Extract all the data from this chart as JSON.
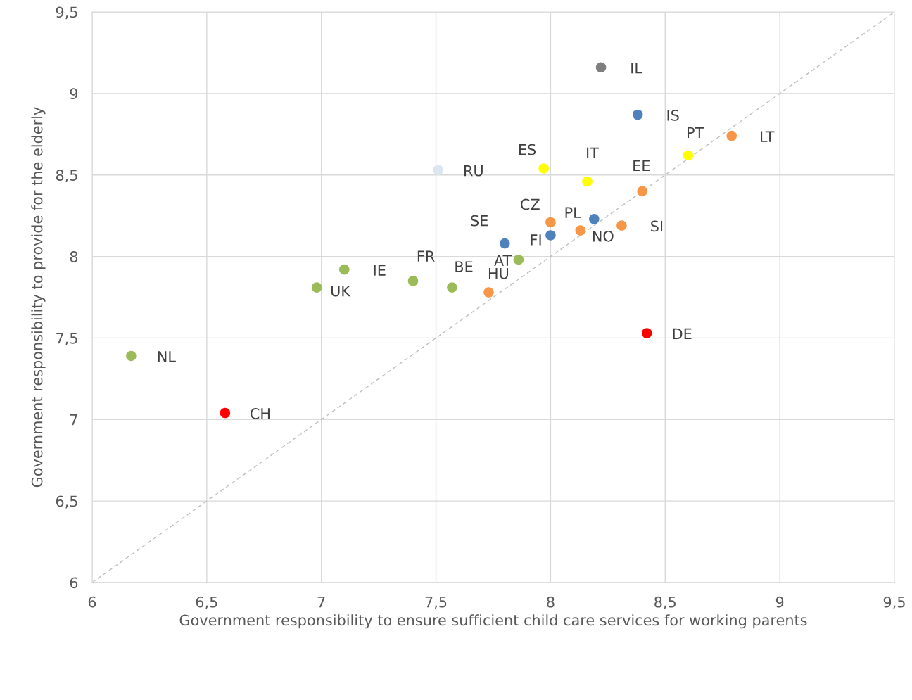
{
  "chart_data": {
    "type": "scatter",
    "xlabel": "Government responsibility to ensure sufficient child care services for working parents",
    "ylabel": "Government responsibility to provide for the elderly",
    "xlim": [
      6,
      9.5
    ],
    "ylim": [
      6,
      9.5
    ],
    "xticks": [
      6,
      {
        "value": 6.5,
        "label": "6,5"
      },
      7,
      {
        "value": 7.5,
        "label": "7,5"
      },
      8,
      {
        "value": 8.5,
        "label": "8,5"
      },
      9,
      {
        "value": 9.5,
        "label": "9,5"
      }
    ],
    "yticks": [
      6,
      {
        "value": 6.5,
        "label": "6,5"
      },
      7,
      {
        "value": 7.5,
        "label": "7,5"
      },
      8,
      {
        "value": 8.5,
        "label": "8,5"
      },
      9,
      {
        "value": 9.5,
        "label": "9,5"
      }
    ],
    "grid": true,
    "marker": "circle",
    "series": [
      {
        "name": "IL",
        "color": "#7f7f7f",
        "x": [
          8.22
        ],
        "values": [
          9.16
        ]
      },
      {
        "name": "IS",
        "color": "#4f81bd",
        "x": [
          8.38
        ],
        "values": [
          8.87
        ]
      },
      {
        "name": "LT",
        "color": "#f79646",
        "x": [
          8.79
        ],
        "values": [
          8.74
        ]
      },
      {
        "name": "PT",
        "color": "#ffff00",
        "x": [
          8.6
        ],
        "values": [
          8.62
        ]
      },
      {
        "name": "ES",
        "color": "#ffff00",
        "x": [
          7.97
        ],
        "values": [
          8.54
        ]
      },
      {
        "name": "RU",
        "color": "#dce6f2",
        "x": [
          7.51
        ],
        "values": [
          8.53
        ]
      },
      {
        "name": "IT",
        "color": "#ffff00",
        "x": [
          8.16
        ],
        "values": [
          8.46
        ]
      },
      {
        "name": "EE",
        "color": "#f79646",
        "x": [
          8.4
        ],
        "values": [
          8.4
        ]
      },
      {
        "name": "CZ",
        "color": "#f79646",
        "x": [
          8.0
        ],
        "values": [
          8.21
        ]
      },
      {
        "name": "PL",
        "color": "#f79646",
        "x": [
          8.13
        ],
        "values": [
          8.16
        ]
      },
      {
        "name": "NO",
        "color": "#4f81bd",
        "x": [
          8.19
        ],
        "values": [
          8.23
        ]
      },
      {
        "name": "SI",
        "color": "#f79646",
        "x": [
          8.31
        ],
        "values": [
          8.19
        ]
      },
      {
        "name": "FI",
        "color": "#4f81bd",
        "x": [
          8.0
        ],
        "values": [
          8.13
        ]
      },
      {
        "name": "SE",
        "color": "#4f81bd",
        "x": [
          7.8
        ],
        "values": [
          8.08
        ]
      },
      {
        "name": "AT",
        "color": "#9bbb59",
        "x": [
          7.86
        ],
        "values": [
          7.98
        ]
      },
      {
        "name": "IE",
        "color": "#9bbb59",
        "x": [
          7.1
        ],
        "values": [
          7.92
        ]
      },
      {
        "name": "FR",
        "color": "#9bbb59",
        "x": [
          7.4
        ],
        "values": [
          7.85
        ]
      },
      {
        "name": "BE",
        "color": "#9bbb59",
        "x": [
          7.57
        ],
        "values": [
          7.81
        ]
      },
      {
        "name": "UK",
        "color": "#9bbb59",
        "x": [
          6.98
        ],
        "values": [
          7.81
        ]
      },
      {
        "name": "HU",
        "color": "#f79646",
        "x": [
          7.73
        ],
        "values": [
          7.78
        ]
      },
      {
        "name": "DE",
        "color": "#ff0000",
        "x": [
          8.42
        ],
        "values": [
          7.53
        ]
      },
      {
        "name": "NL",
        "color": "#9bbb59",
        "x": [
          6.17
        ],
        "values": [
          7.39
        ]
      },
      {
        "name": "CH",
        "color": "#ff0000",
        "x": [
          6.58
        ],
        "values": [
          7.04
        ]
      },
      {
        "type": "line",
        "color": "#bfbfbf",
        "line_style": "dashed",
        "marker": "none",
        "x": [
          6,
          9.5
        ],
        "values": [
          6,
          9.5
        ]
      }
    ]
  }
}
